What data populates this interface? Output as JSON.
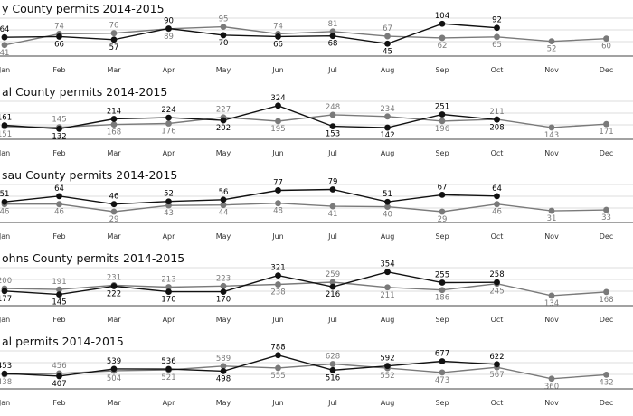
{
  "chart_data": [
    {
      "type": "line",
      "title": "y County permits 2014-2015",
      "categories": [
        "Jan",
        "Feb",
        "Mar",
        "Apr",
        "May",
        "Jun",
        "Jul",
        "Aug",
        "Sep",
        "Oct",
        "Nov",
        "Dec"
      ],
      "series": [
        {
          "values": [
            41,
            74,
            76,
            89,
            95,
            74,
            81,
            67,
            62,
            65,
            52,
            60
          ],
          "color": "#7a7a7a"
        },
        {
          "values": [
            64,
            66,
            57,
            90,
            70,
            66,
            68,
            45,
            104,
            92,
            null,
            null
          ],
          "color": "#111111"
        }
      ],
      "ylim": [
        35,
        110
      ]
    },
    {
      "type": "line",
      "title": "al County permits 2014-2015",
      "categories": [
        "Jan",
        "Feb",
        "Mar",
        "Apr",
        "May",
        "Jun",
        "Jul",
        "Aug",
        "Sep",
        "Oct",
        "Nov",
        "Dec"
      ],
      "series": [
        {
          "values": [
            151,
            145,
            168,
            176,
            227,
            195,
            248,
            234,
            196,
            211,
            143,
            171
          ],
          "color": "#7a7a7a"
        },
        {
          "values": [
            161,
            132,
            214,
            224,
            202,
            324,
            153,
            142,
            251,
            208,
            null,
            null
          ],
          "color": "#111111"
        }
      ],
      "ylim": [
        120,
        330
      ]
    },
    {
      "type": "line",
      "title": "sau County permits 2014-2015",
      "categories": [
        "Jan",
        "Feb",
        "Mar",
        "Apr",
        "May",
        "Jun",
        "Jul",
        "Aug",
        "Sep",
        "Oct",
        "Nov",
        "Dec"
      ],
      "series": [
        {
          "values": [
            46,
            46,
            29,
            43,
            44,
            48,
            41,
            40,
            29,
            46,
            31,
            33
          ],
          "color": "#7a7a7a"
        },
        {
          "values": [
            51,
            64,
            46,
            52,
            56,
            77,
            79,
            51,
            67,
            64,
            null,
            null
          ],
          "color": "#111111"
        }
      ],
      "ylim": [
        25,
        82
      ]
    },
    {
      "type": "line",
      "title": "ohns County permits 2014-2015",
      "categories": [
        "Jan",
        "Feb",
        "Mar",
        "Apr",
        "May",
        "Jun",
        "Jul",
        "Aug",
        "Sep",
        "Oct",
        "Nov",
        "Dec"
      ],
      "series": [
        {
          "values": [
            200,
            191,
            231,
            213,
            223,
            238,
            259,
            211,
            186,
            245,
            134,
            168
          ],
          "color": "#7a7a7a"
        },
        {
          "values": [
            177,
            145,
            222,
            170,
            170,
            321,
            216,
            354,
            255,
            258,
            null,
            null
          ],
          "color": "#111111"
        }
      ],
      "ylim": [
        125,
        360
      ]
    },
    {
      "type": "line",
      "title": "al permits 2014-2015",
      "categories": [
        "Jan",
        "Feb",
        "Mar",
        "Apr",
        "May",
        "Jun",
        "Jul",
        "Aug",
        "Sep",
        "Oct",
        "Nov",
        "Dec"
      ],
      "series": [
        {
          "values": [
            438,
            456,
            504,
            521,
            589,
            555,
            628,
            552,
            473,
            567,
            360,
            432
          ],
          "color": "#7a7a7a"
        },
        {
          "values": [
            453,
            407,
            539,
            536,
            498,
            788,
            516,
            592,
            677,
            622,
            null,
            null
          ],
          "color": "#111111"
        }
      ],
      "ylim": [
        340,
        800
      ]
    }
  ]
}
